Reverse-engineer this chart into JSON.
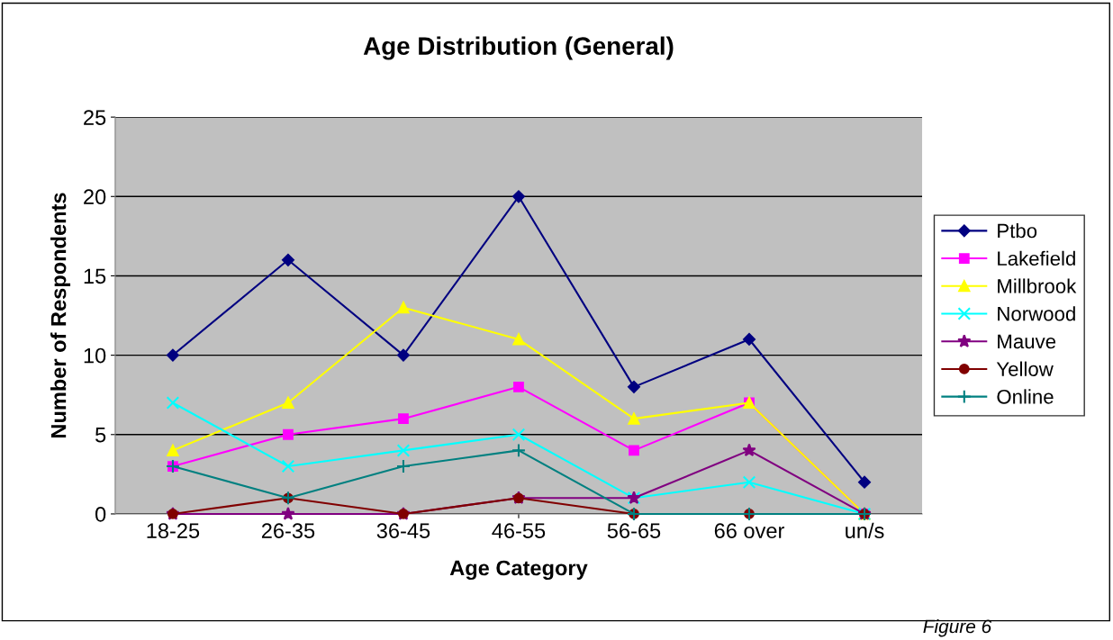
{
  "chart_data": {
    "type": "line",
    "title": "Age Distribution (General)",
    "xlabel": "Age Category",
    "ylabel": "Number of Respondents",
    "categories": [
      "18-25",
      "26-35",
      "36-45",
      "46-55",
      "56-65",
      "66 over",
      "un/s"
    ],
    "series": [
      {
        "name": "Ptbo",
        "color": "#000080",
        "marker": "diamond",
        "values": [
          10,
          16,
          10,
          20,
          8,
          11,
          2
        ]
      },
      {
        "name": "Lakefield",
        "color": "#ff00ff",
        "marker": "square",
        "values": [
          3,
          5,
          6,
          8,
          4,
          7,
          0
        ]
      },
      {
        "name": "Millbrook",
        "color": "#ffff00",
        "marker": "triangle",
        "values": [
          4,
          7,
          13,
          11,
          6,
          7,
          0
        ]
      },
      {
        "name": "Norwood",
        "color": "#00ffff",
        "marker": "cross",
        "values": [
          7,
          3,
          4,
          5,
          1,
          2,
          0
        ]
      },
      {
        "name": "Mauve",
        "color": "#800080",
        "marker": "star",
        "values": [
          0,
          0,
          0,
          1,
          1,
          4,
          0
        ]
      },
      {
        "name": "Yellow",
        "color": "#800000",
        "marker": "circle",
        "values": [
          0,
          1,
          0,
          1,
          0,
          0,
          0
        ]
      },
      {
        "name": "Online",
        "color": "#008080",
        "marker": "plus",
        "values": [
          3,
          1,
          3,
          4,
          0,
          0,
          0
        ]
      }
    ],
    "ylim": [
      0,
      25
    ],
    "yticks": [
      0,
      5,
      10,
      15,
      20,
      25
    ],
    "grid": "y",
    "legend": "right",
    "annotations": [
      "Figure 6"
    ]
  }
}
